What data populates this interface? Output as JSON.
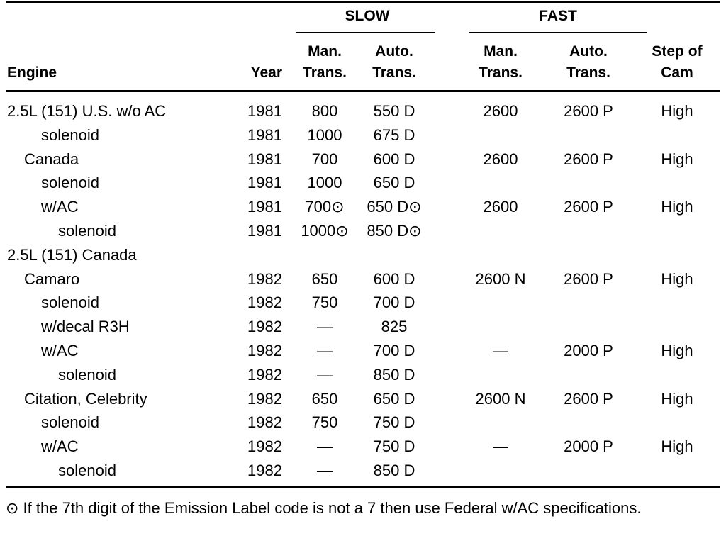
{
  "table": {
    "groups": [
      "SLOW",
      "FAST"
    ],
    "headers": {
      "engine": [
        "Engine"
      ],
      "year": [
        "Year"
      ],
      "slow_man": [
        "Man.",
        "Trans."
      ],
      "slow_auto": [
        "Auto.",
        "Trans."
      ],
      "fast_man": [
        "Man.",
        "Trans."
      ],
      "fast_auto": [
        "Auto.",
        "Trans."
      ],
      "step": [
        "Step of",
        "Cam"
      ]
    },
    "rows": [
      {
        "engine": "2.5L (151) U.S. w/o AC",
        "year": 1981,
        "slow_man": "800",
        "slow_auto": "550 D",
        "fast_man": "2600",
        "fast_auto": "2600 P",
        "step": "High"
      },
      {
        "engine": "solenoid",
        "year": 1981,
        "slow_man": "1000",
        "slow_auto": "675 D"
      },
      {
        "engine": "Canada",
        "year": 1981,
        "slow_man": "700",
        "slow_auto": "600 D",
        "fast_man": "2600",
        "fast_auto": "2600 P",
        "step": "High"
      },
      {
        "engine": "solenoid",
        "year": 1981,
        "slow_man": "1000",
        "slow_auto": "650 D"
      },
      {
        "engine": "w/AC",
        "year": 1981,
        "slow_man": "700⊙",
        "slow_auto": "650 D⊙",
        "fast_man": "2600",
        "fast_auto": "2600 P",
        "step": "High"
      },
      {
        "engine": "solenoid",
        "year": 1981,
        "slow_man": "1000⊙",
        "slow_auto": "850 D⊙"
      },
      {
        "engine": "2.5L (151) Canada"
      },
      {
        "engine": "Camaro",
        "year": 1982,
        "slow_man": "650",
        "slow_auto": "600 D",
        "fast_man": "2600 N",
        "fast_auto": "2600 P",
        "step": "High"
      },
      {
        "engine": "solenoid",
        "year": 1982,
        "slow_man": "750",
        "slow_auto": "700 D"
      },
      {
        "engine": "w/decal R3H",
        "year": 1982,
        "slow_man": "—",
        "slow_auto": "825"
      },
      {
        "engine": "w/AC",
        "year": 1982,
        "slow_man": "—",
        "slow_auto": "700 D",
        "fast_man": "—",
        "fast_auto": "2000 P",
        "step": "High"
      },
      {
        "engine": "solenoid",
        "year": 1982,
        "slow_man": "—",
        "slow_auto": "850 D"
      },
      {
        "engine": "Citation, Celebrity",
        "year": 1982,
        "slow_man": "650",
        "slow_auto": "650 D",
        "fast_man": "2600 N",
        "fast_auto": "2600 P",
        "step": "High"
      },
      {
        "engine": "solenoid",
        "year": 1982,
        "slow_man": "750",
        "slow_auto": "750 D"
      },
      {
        "engine": "w/AC",
        "year": 1982,
        "slow_man": "—",
        "slow_auto": "750 D",
        "fast_man": "—",
        "fast_auto": "2000 P",
        "step": "High"
      },
      {
        "engine": "solenoid",
        "year": 1982,
        "slow_man": "—",
        "slow_auto": "850 D"
      }
    ],
    "footnote": "⊙ If the 7th digit of the Emission Label code is not a 7 then use Federal w/AC specifications."
  }
}
